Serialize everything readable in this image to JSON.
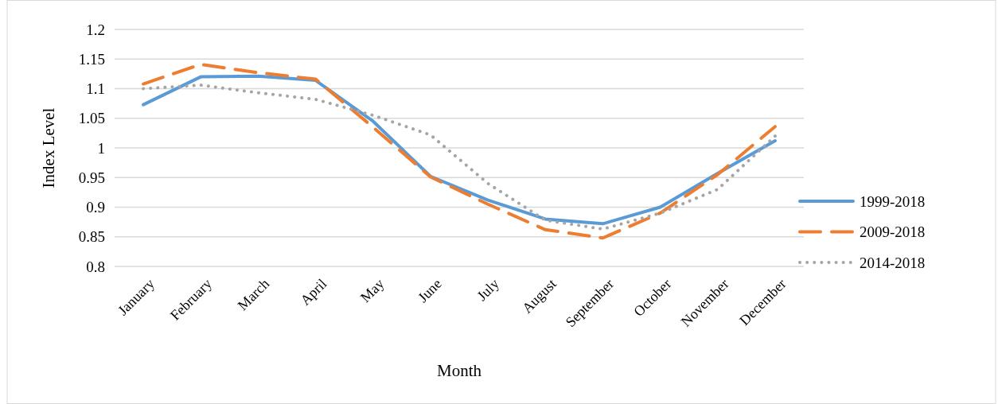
{
  "chart_data": {
    "type": "line",
    "xlabel": "Month",
    "ylabel": "Index Level",
    "categories": [
      "January",
      "February",
      "March",
      "April",
      "May",
      "June",
      "July",
      "August",
      "September",
      "October",
      "November",
      "December"
    ],
    "series": [
      {
        "name": "1999-2018",
        "color": "#5b9bd5",
        "line_style": "solid",
        "values": [
          1.073,
          1.12,
          1.121,
          1.114,
          1.045,
          0.952,
          0.912,
          0.88,
          0.872,
          0.9,
          0.957,
          1.012
        ]
      },
      {
        "name": "2009-2018",
        "color": "#ed7d31",
        "line_style": "dashed",
        "values": [
          1.108,
          1.141,
          1.127,
          1.116,
          1.035,
          0.951,
          0.905,
          0.862,
          0.848,
          0.89,
          0.955,
          1.036
        ]
      },
      {
        "name": "2014-2018",
        "color": "#a5a5a5",
        "line_style": "dotted",
        "values": [
          1.1,
          1.106,
          1.093,
          1.082,
          1.055,
          1.022,
          0.94,
          0.878,
          0.863,
          0.89,
          0.93,
          1.02
        ]
      }
    ],
    "ylim": [
      0.8,
      1.2
    ],
    "yticks": [
      0.8,
      0.85,
      0.9,
      0.95,
      1,
      1.05,
      1.1,
      1.15,
      1.2
    ],
    "grid": "y",
    "legend": "right",
    "marker": "none"
  }
}
